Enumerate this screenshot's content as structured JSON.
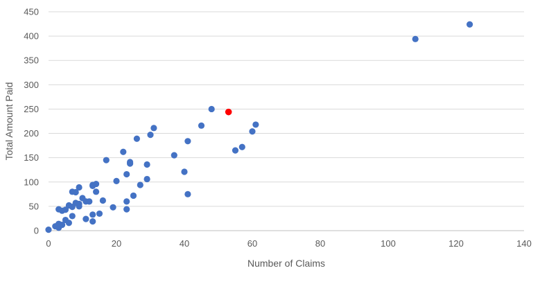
{
  "chart_data": {
    "type": "scatter",
    "title": "",
    "xlabel": "Number of Claims",
    "ylabel": "Total Amount Paid",
    "xlim": [
      0,
      140
    ],
    "ylim": [
      0,
      450
    ],
    "x_ticks": [
      0,
      20,
      40,
      60,
      80,
      100,
      120,
      140
    ],
    "y_ticks": [
      0,
      50,
      100,
      150,
      200,
      250,
      300,
      350,
      400,
      450
    ],
    "grid": "horizontal",
    "legend": "none",
    "colors": {
      "points": "#4472c4",
      "highlight": "#ff0000",
      "grid": "#d9d9d9",
      "text": "#595959"
    },
    "series": [
      {
        "points": [
          [
            0,
            2
          ],
          [
            2,
            9
          ],
          [
            3,
            6
          ],
          [
            3,
            14
          ],
          [
            3,
            44
          ],
          [
            4,
            12
          ],
          [
            4,
            41
          ],
          [
            5,
            22
          ],
          [
            5,
            43
          ],
          [
            6,
            16
          ],
          [
            6,
            52
          ],
          [
            7,
            30
          ],
          [
            7,
            49
          ],
          [
            7,
            80
          ],
          [
            8,
            57
          ],
          [
            8,
            79
          ],
          [
            9,
            50
          ],
          [
            9,
            55
          ],
          [
            9,
            89
          ],
          [
            10,
            67
          ],
          [
            11,
            24
          ],
          [
            11,
            60
          ],
          [
            12,
            60
          ],
          [
            13,
            19
          ],
          [
            13,
            33
          ],
          [
            13,
            92
          ],
          [
            13,
            94
          ],
          [
            14,
            80
          ],
          [
            14,
            96
          ],
          [
            15,
            35
          ],
          [
            16,
            62
          ],
          [
            17,
            145
          ],
          [
            19,
            48
          ],
          [
            20,
            102
          ],
          [
            22,
            162
          ],
          [
            23,
            44
          ],
          [
            23,
            60
          ],
          [
            23,
            116
          ],
          [
            24,
            138
          ],
          [
            24,
            141
          ],
          [
            25,
            72
          ],
          [
            26,
            189
          ],
          [
            27,
            94
          ],
          [
            29,
            106
          ],
          [
            29,
            136
          ],
          [
            30,
            197
          ],
          [
            31,
            211
          ],
          [
            37,
            155
          ],
          [
            40,
            121
          ],
          [
            41,
            75
          ],
          [
            41,
            184
          ],
          [
            45,
            216
          ],
          [
            48,
            250
          ],
          [
            55,
            165
          ],
          [
            57,
            172
          ],
          [
            60,
            204
          ],
          [
            61,
            218
          ],
          [
            108,
            394
          ],
          [
            124,
            424
          ]
        ]
      }
    ],
    "highlight_point": [
      53,
      244
    ]
  }
}
